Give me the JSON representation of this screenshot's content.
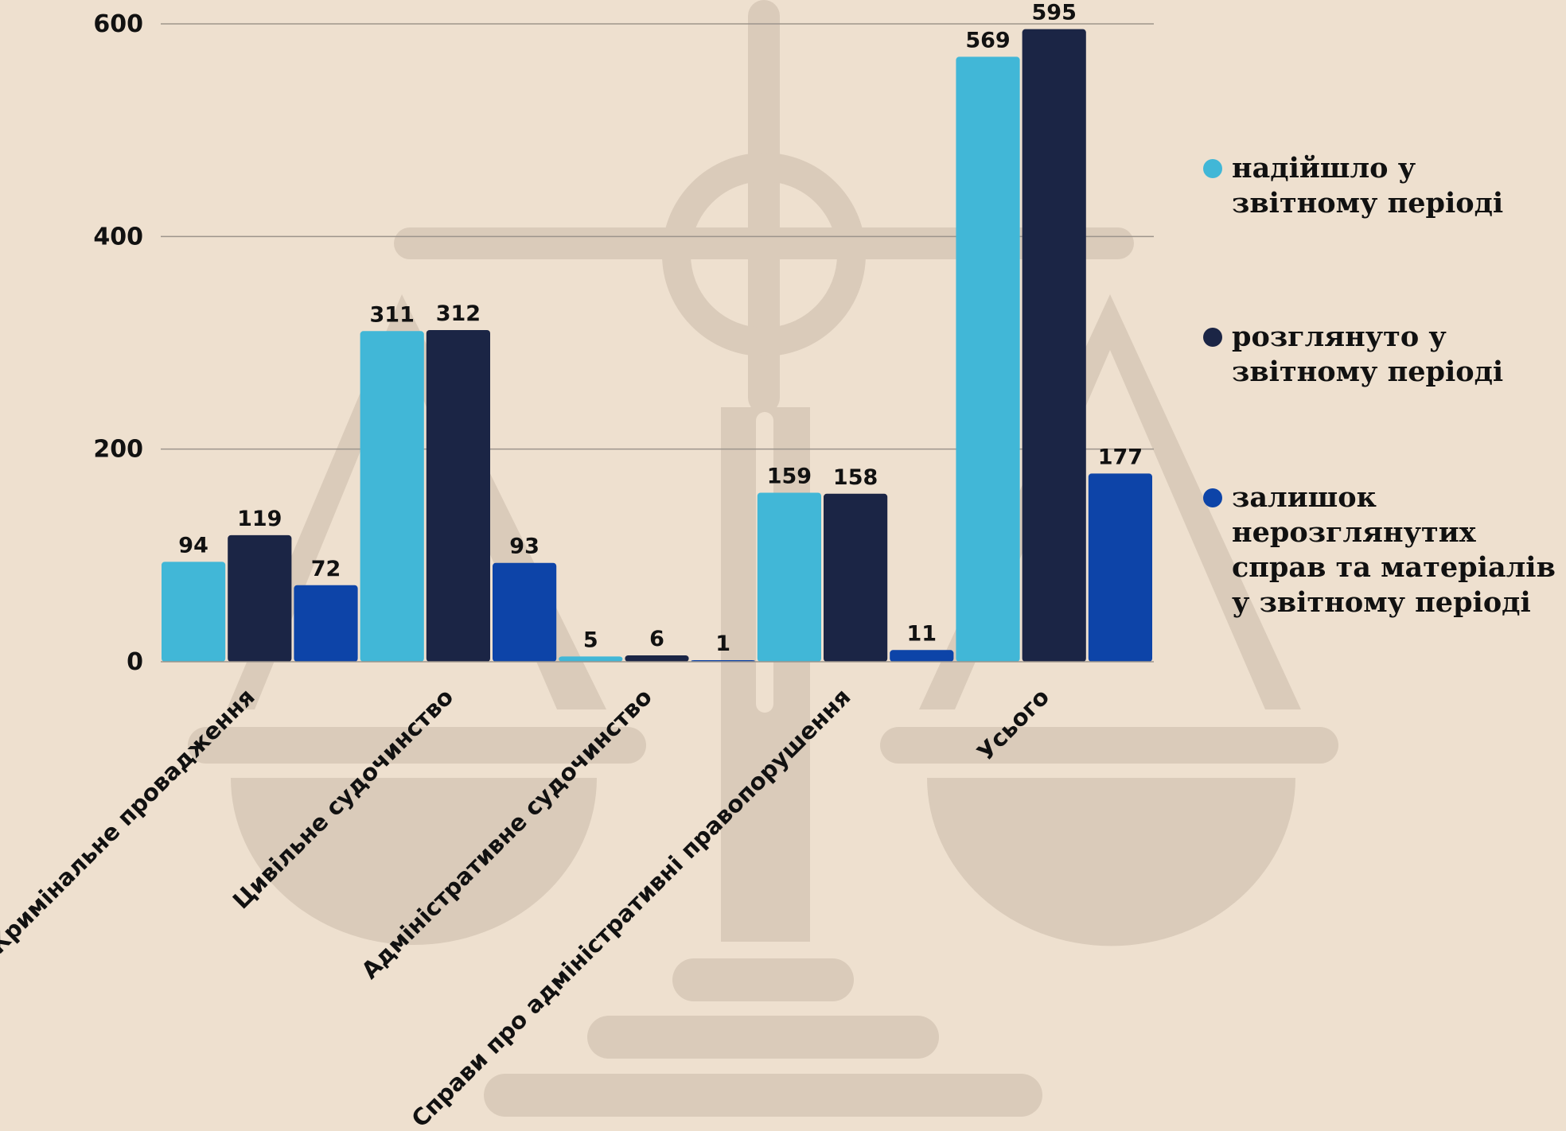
{
  "colors": {
    "background": "#eee0cf",
    "watermark": "#dacbba",
    "grid": "#9d958c",
    "text": "#111111"
  },
  "chart_data": {
    "type": "bar",
    "title": "",
    "xlabel": "",
    "ylabel": "",
    "ylim": [
      0,
      600
    ],
    "yticks": [
      0,
      200,
      400,
      600
    ],
    "grid": true,
    "legend_position": "right",
    "categories": [
      "Кримінальне провадження",
      "Цивільне судочинство",
      "Адміністративне судочинство",
      "Справи про адміністративні правопорушення",
      "Усього"
    ],
    "series": [
      {
        "name": "надійшло у звітному періоді",
        "color": "#41b7d7",
        "values": [
          94,
          311,
          5,
          159,
          569
        ]
      },
      {
        "name": "розглянуто у звітному періоді",
        "color": "#1b2545",
        "values": [
          119,
          312,
          6,
          158,
          595
        ]
      },
      {
        "name": "залишок нерозглянутих справ та матеріалів у звітному періоді",
        "color": "#0d44a8",
        "values": [
          72,
          93,
          1,
          11,
          177
        ]
      }
    ]
  }
}
